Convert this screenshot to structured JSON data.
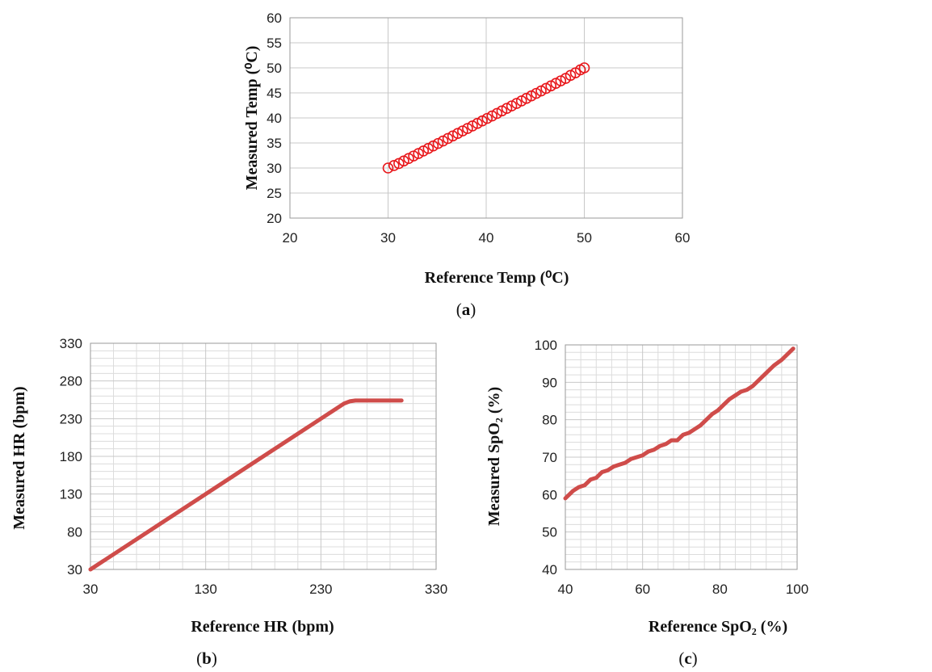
{
  "chart_data": [
    {
      "id": "a",
      "type": "scatter",
      "caption": "a",
      "xlabel": "Reference Temp (⁰C)",
      "ylabel": "Measured Temp (⁰C)",
      "xlim": [
        20,
        60
      ],
      "ylim": [
        20,
        60
      ],
      "xticks": [
        20,
        30,
        40,
        50,
        60
      ],
      "yticks": [
        20,
        25,
        30,
        35,
        40,
        45,
        50,
        55,
        60
      ],
      "grid": "major",
      "marker": "open-circle",
      "color": "#e8171b",
      "points": [
        [
          30.0,
          30.0
        ],
        [
          30.6,
          30.5
        ],
        [
          31.1,
          30.9
        ],
        [
          31.6,
          31.4
        ],
        [
          32.1,
          31.9
        ],
        [
          32.6,
          32.4
        ],
        [
          33.1,
          32.9
        ],
        [
          33.6,
          33.4
        ],
        [
          34.1,
          33.9
        ],
        [
          34.6,
          34.4
        ],
        [
          35.1,
          34.9
        ],
        [
          35.6,
          35.4
        ],
        [
          36.1,
          35.9
        ],
        [
          36.6,
          36.4
        ],
        [
          37.1,
          36.9
        ],
        [
          37.6,
          37.4
        ],
        [
          38.1,
          37.9
        ],
        [
          38.6,
          38.4
        ],
        [
          39.1,
          38.9
        ],
        [
          39.6,
          39.4
        ],
        [
          40.1,
          39.9
        ],
        [
          40.6,
          40.4
        ],
        [
          41.1,
          40.9
        ],
        [
          41.6,
          41.4
        ],
        [
          42.1,
          41.9
        ],
        [
          42.6,
          42.4
        ],
        [
          43.1,
          42.9
        ],
        [
          43.6,
          43.4
        ],
        [
          44.1,
          43.9
        ],
        [
          44.6,
          44.4
        ],
        [
          45.1,
          44.9
        ],
        [
          45.6,
          45.4
        ],
        [
          46.1,
          45.9
        ],
        [
          46.6,
          46.4
        ],
        [
          47.1,
          46.9
        ],
        [
          47.6,
          47.4
        ],
        [
          48.1,
          47.9
        ],
        [
          48.6,
          48.5
        ],
        [
          49.1,
          49.0
        ],
        [
          49.6,
          49.6
        ],
        [
          50.0,
          50.0
        ]
      ]
    },
    {
      "id": "b",
      "type": "line",
      "caption": "b",
      "xlabel": "Reference HR (bpm)",
      "ylabel": "Measured HR (bpm)",
      "xlim": [
        30,
        330
      ],
      "ylim": [
        30,
        330
      ],
      "xticks": [
        30,
        130,
        230,
        330
      ],
      "yticks": [
        30,
        80,
        130,
        180,
        230,
        280,
        330
      ],
      "grid": "major+minor",
      "color": "#cf4c4a",
      "x": [
        30,
        250,
        255,
        260,
        265,
        300
      ],
      "y": [
        30,
        250,
        253,
        254,
        254,
        254
      ]
    },
    {
      "id": "c",
      "type": "line",
      "caption": "c",
      "xlabel": "Reference SpO₂ (%)",
      "ylabel": "Measured SpO₂ (%)",
      "xlim": [
        40,
        100
      ],
      "ylim": [
        40,
        100
      ],
      "xticks": [
        40,
        60,
        80,
        100
      ],
      "yticks": [
        40,
        50,
        60,
        70,
        80,
        90,
        100
      ],
      "grid": "major+minor",
      "color": "#cf4c4a",
      "x": [
        40,
        42,
        43.5,
        45,
        46.5,
        48,
        49.5,
        51,
        52.5,
        54,
        55.5,
        57,
        58.5,
        60,
        61.5,
        63,
        64.5,
        66,
        67.5,
        69,
        70.5,
        72,
        73.5,
        75,
        76.5,
        78,
        79.5,
        81,
        82.5,
        84,
        85.5,
        87,
        88.5,
        90,
        92,
        94,
        96,
        99
      ],
      "y": [
        59,
        61,
        62,
        62.5,
        64,
        64.5,
        66,
        66.5,
        67.5,
        68,
        68.5,
        69.5,
        70,
        70.5,
        71.5,
        72,
        73,
        73.5,
        74.5,
        74.5,
        76,
        76.5,
        77.5,
        78.5,
        80,
        81.5,
        82.5,
        84,
        85.5,
        86.5,
        87.5,
        88,
        89,
        90.5,
        92.5,
        94.5,
        96,
        99
      ]
    }
  ]
}
